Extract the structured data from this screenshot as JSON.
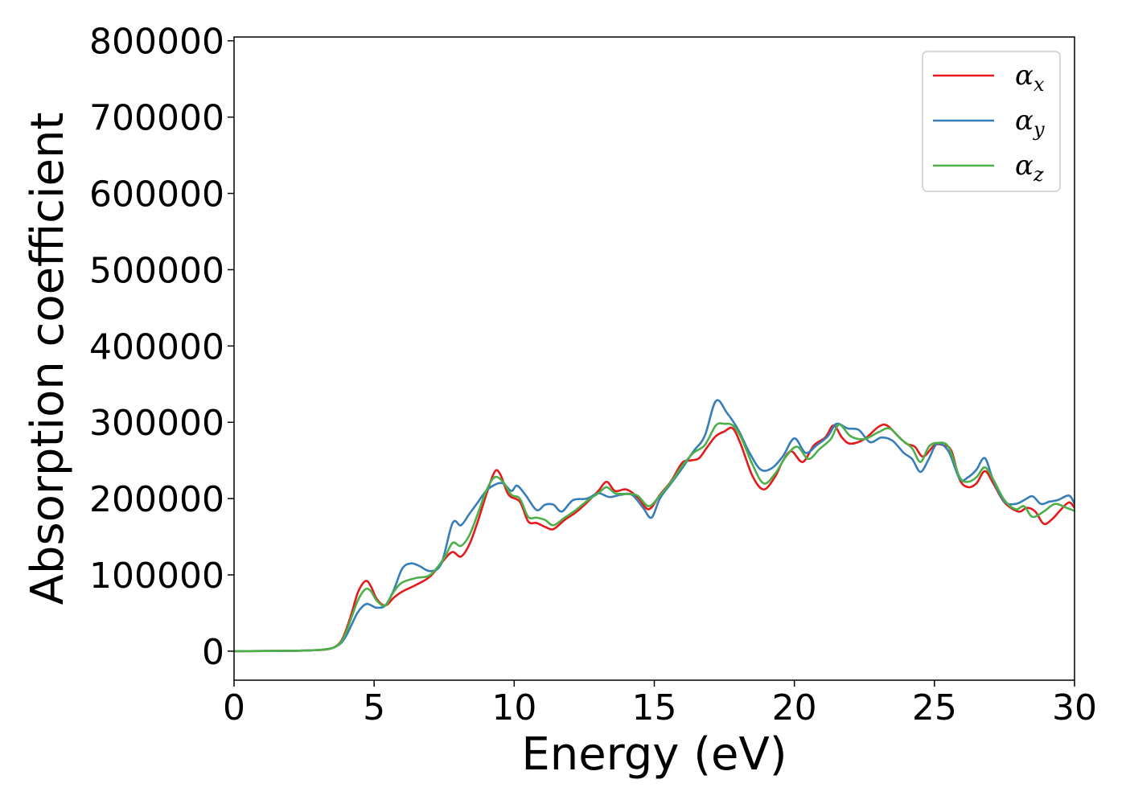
{
  "chart_data": {
    "type": "line",
    "xlabel": "Energy (eV)",
    "ylabel": "Absorption coefficient",
    "xlim": [
      0,
      30
    ],
    "ylim": [
      -38000,
      805000
    ],
    "xticks": [
      0,
      5,
      10,
      15,
      20,
      25,
      30
    ],
    "yticks": [
      0,
      100000,
      200000,
      300000,
      400000,
      500000,
      600000,
      700000,
      800000
    ],
    "grid": false,
    "legend_position": "top-right",
    "series": [
      {
        "name": "α_x",
        "symbol": "α",
        "subscript": "x",
        "color": "#e41a1c",
        "x": [
          0,
          2,
          3,
          3.5,
          3.8,
          4.0,
          4.2,
          4.4,
          4.6,
          4.75,
          4.9,
          5.1,
          5.4,
          5.7,
          6.0,
          6.5,
          7.0,
          7.5,
          7.8,
          8.1,
          8.4,
          8.7,
          9.0,
          9.3,
          9.5,
          9.8,
          10.2,
          10.5,
          10.8,
          11.1,
          11.4,
          11.8,
          12.2,
          12.6,
          13.0,
          13.3,
          13.6,
          14.0,
          14.4,
          14.8,
          15.2,
          15.6,
          16.0,
          16.3,
          16.6,
          16.9,
          17.2,
          17.5,
          17.8,
          18.1,
          18.5,
          18.9,
          19.3,
          19.6,
          19.9,
          20.3,
          20.7,
          21.1,
          21.4,
          21.7,
          22.0,
          22.5,
          23.0,
          23.3,
          23.7,
          24.0,
          24.3,
          24.6,
          25.0,
          25.3,
          25.6,
          25.9,
          26.2,
          26.5,
          26.8,
          27.1,
          27.5,
          28.0,
          28.3,
          28.6,
          28.9,
          29.2,
          29.5,
          29.8,
          30.0
        ],
        "values": [
          0,
          500,
          1500,
          4000,
          12000,
          28000,
          50000,
          75000,
          89000,
          92000,
          84000,
          68000,
          60000,
          70000,
          78000,
          87000,
          98000,
          120000,
          130000,
          124000,
          140000,
          170000,
          205000,
          235000,
          232000,
          205000,
          196000,
          170000,
          168000,
          163000,
          160000,
          172000,
          182000,
          195000,
          210000,
          222000,
          210000,
          212000,
          202000,
          186000,
          205000,
          223000,
          247000,
          250000,
          253000,
          268000,
          282000,
          288000,
          292000,
          270000,
          230000,
          212000,
          228000,
          250000,
          262000,
          248000,
          270000,
          280000,
          296000,
          280000,
          272000,
          278000,
          294000,
          296000,
          282000,
          272000,
          268000,
          255000,
          270000,
          270000,
          263000,
          225000,
          215000,
          220000,
          236000,
          220000,
          195000,
          183000,
          188000,
          183000,
          167000,
          173000,
          185000,
          195000,
          188000
        ]
      },
      {
        "name": "α_y",
        "symbol": "α",
        "subscript": "y",
        "color": "#377eb8",
        "x": [
          0,
          2,
          3,
          3.5,
          3.8,
          4.0,
          4.2,
          4.4,
          4.6,
          4.75,
          4.9,
          5.1,
          5.4,
          5.7,
          6.0,
          6.3,
          6.6,
          7.0,
          7.4,
          7.8,
          8.1,
          8.4,
          8.7,
          9.0,
          9.3,
          9.6,
          9.9,
          10.1,
          10.4,
          10.8,
          11.1,
          11.4,
          11.7,
          12.1,
          12.6,
          13.0,
          13.4,
          13.8,
          14.2,
          14.6,
          14.9,
          15.2,
          15.6,
          16.0,
          16.4,
          16.8,
          17.2,
          17.6,
          18.0,
          18.4,
          18.8,
          19.2,
          19.6,
          20.0,
          20.4,
          20.8,
          21.2,
          21.5,
          21.9,
          22.3,
          22.7,
          23.1,
          23.5,
          23.9,
          24.2,
          24.5,
          24.8,
          25.1,
          25.5,
          25.9,
          26.2,
          26.5,
          26.8,
          27.1,
          27.5,
          27.9,
          28.2,
          28.5,
          28.8,
          29.1,
          29.4,
          29.8,
          30.0
        ],
        "values": [
          0,
          500,
          1500,
          4000,
          10000,
          20000,
          35000,
          50000,
          59000,
          62000,
          60000,
          57000,
          60000,
          80000,
          108000,
          115000,
          112000,
          105000,
          115000,
          168000,
          165000,
          180000,
          195000,
          210000,
          218000,
          220000,
          210000,
          217000,
          205000,
          185000,
          192000,
          192000,
          183000,
          198000,
          200000,
          207000,
          202000,
          205000,
          205000,
          188000,
          175000,
          200000,
          220000,
          240000,
          262000,
          282000,
          328000,
          312000,
          290000,
          260000,
          238000,
          240000,
          256000,
          279000,
          260000,
          270000,
          282000,
          298000,
          292000,
          290000,
          274000,
          280000,
          276000,
          260000,
          252000,
          235000,
          252000,
          272000,
          262000,
          226000,
          228000,
          238000,
          253000,
          224000,
          196000,
          193000,
          198000,
          203000,
          193000,
          196000,
          198000,
          204000,
          193000
        ]
      },
      {
        "name": "α_z",
        "symbol": "α",
        "subscript": "z",
        "color": "#4daf4a",
        "x": [
          0,
          2,
          3,
          3.5,
          3.8,
          4.0,
          4.2,
          4.4,
          4.6,
          4.75,
          4.9,
          5.1,
          5.4,
          5.7,
          6.0,
          6.5,
          7.0,
          7.5,
          7.8,
          8.1,
          8.4,
          8.7,
          9.0,
          9.3,
          9.6,
          9.9,
          10.2,
          10.5,
          10.8,
          11.1,
          11.4,
          11.8,
          12.2,
          12.6,
          13.0,
          13.3,
          13.6,
          14.0,
          14.4,
          14.8,
          15.2,
          15.6,
          16.0,
          16.4,
          16.8,
          17.2,
          17.5,
          17.8,
          18.1,
          18.5,
          18.9,
          19.3,
          19.7,
          20.1,
          20.5,
          20.9,
          21.3,
          21.6,
          22.0,
          22.5,
          23.0,
          23.4,
          23.8,
          24.2,
          24.5,
          24.8,
          25.1,
          25.5,
          25.9,
          26.2,
          26.5,
          26.8,
          27.1,
          27.5,
          27.9,
          28.2,
          28.5,
          28.9,
          29.3,
          29.7,
          30.0
        ],
        "values": [
          0,
          500,
          1500,
          4000,
          11000,
          25000,
          45000,
          65000,
          78000,
          82000,
          78000,
          66000,
          60000,
          78000,
          90000,
          96000,
          100000,
          122000,
          142000,
          138000,
          152000,
          180000,
          210000,
          228000,
          222000,
          205000,
          200000,
          176000,
          175000,
          172000,
          165000,
          175000,
          185000,
          197000,
          207000,
          215000,
          207000,
          206000,
          204000,
          190000,
          204000,
          222000,
          243000,
          260000,
          270000,
          296000,
          298000,
          296000,
          280000,
          245000,
          220000,
          232000,
          255000,
          268000,
          252000,
          265000,
          278000,
          297000,
          282000,
          278000,
          287000,
          292000,
          278000,
          266000,
          248000,
          268000,
          273000,
          268000,
          228000,
          222000,
          228000,
          241000,
          225000,
          198000,
          186000,
          190000,
          176000,
          183000,
          193000,
          188000,
          184000
        ]
      }
    ]
  }
}
